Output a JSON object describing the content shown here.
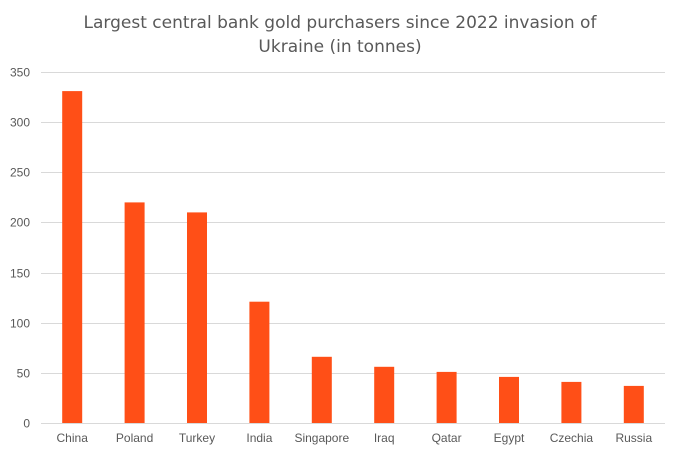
{
  "chart_data": {
    "type": "bar",
    "title": "Largest central bank gold purchasers since 2022 invasion of Ukraine (in tonnes)",
    "xlabel": "",
    "ylabel": "",
    "categories": [
      "China",
      "Poland",
      "Turkey",
      "India",
      "Singapore",
      "Iraq",
      "Qatar",
      "Egypt",
      "Czechia",
      "Russia"
    ],
    "values": [
      331,
      220,
      210,
      121,
      66,
      56,
      51,
      46,
      41,
      37
    ],
    "ylim": [
      0,
      350
    ],
    "yticks": [
      0,
      50,
      100,
      150,
      200,
      250,
      300,
      350
    ],
    "grid": true,
    "legend": "none",
    "bar_color": "#FF4F17",
    "grid_color": "#D9D9D9",
    "text_color": "#595959"
  }
}
